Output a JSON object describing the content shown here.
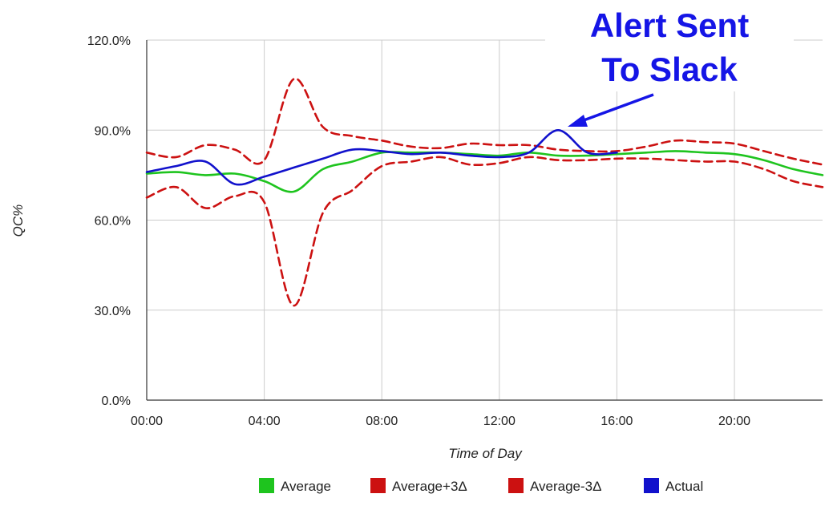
{
  "chart_data": {
    "type": "line",
    "title": "",
    "xlabel": "Time of Day",
    "ylabel": "QC%",
    "x_ticks": [
      "00:00",
      "04:00",
      "08:00",
      "12:00",
      "16:00",
      "20:00"
    ],
    "y_ticks": [
      "0.0%",
      "30.0%",
      "60.0%",
      "90.0%",
      "120.0%"
    ],
    "xlim": [
      0,
      23
    ],
    "ylim": [
      0,
      120
    ],
    "grid": true,
    "legend_position": "bottom",
    "x": [
      0,
      1,
      2,
      3,
      4,
      5,
      6,
      7,
      8,
      9,
      10,
      11,
      12,
      13,
      14,
      15,
      16,
      17,
      18,
      19,
      20,
      21,
      22,
      23
    ],
    "series": [
      {
        "name": "Average",
        "color": "#1ec41e",
        "dashed": false,
        "values": [
          75.5,
          76,
          75,
          75.5,
          73,
          69.5,
          77,
          79.5,
          82.5,
          82.5,
          82.5,
          82,
          81.5,
          82.5,
          81.5,
          81.5,
          82,
          82.5,
          83,
          82.5,
          82,
          80,
          77,
          75
        ]
      },
      {
        "name": "Average+3Δ",
        "color": "#cc1111",
        "dashed": true,
        "values": [
          82.5,
          81,
          85,
          83.5,
          80,
          107,
          91,
          88,
          86.5,
          84.5,
          84,
          85.5,
          85,
          85,
          83.5,
          83,
          83,
          84.5,
          86.5,
          86,
          85.5,
          83,
          80.5,
          78.5
        ]
      },
      {
        "name": "Average-3Δ",
        "color": "#cc1111",
        "dashed": true,
        "values": [
          67.5,
          71,
          64,
          68,
          66,
          31.5,
          62.5,
          70,
          78,
          79.5,
          81,
          78.5,
          79,
          81,
          80,
          80,
          80.5,
          80.5,
          80,
          79.5,
          79.5,
          77,
          73,
          71
        ]
      },
      {
        "name": "Actual",
        "color": "#1111cc",
        "dashed": false,
        "values": [
          76,
          78,
          79.5,
          72,
          74.5,
          77.5,
          80.5,
          83.5,
          83,
          82,
          82.5,
          81.5,
          81,
          82.5,
          90,
          82.5,
          82.5,
          null,
          null,
          null,
          null,
          null,
          null,
          null
        ]
      }
    ],
    "annotation": {
      "line1": "Alert Sent",
      "line2": "To Slack",
      "color": "#1515e6",
      "points_to": {
        "x": 14,
        "y": 90
      }
    }
  }
}
